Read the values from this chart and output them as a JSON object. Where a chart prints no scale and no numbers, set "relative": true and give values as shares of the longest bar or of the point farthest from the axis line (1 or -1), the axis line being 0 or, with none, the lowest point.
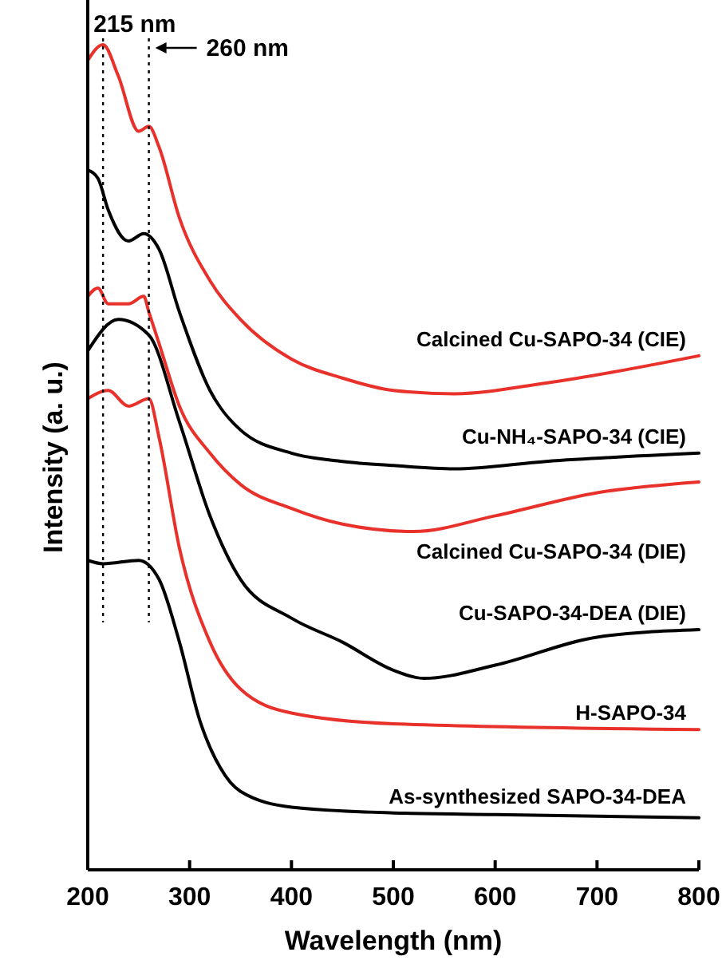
{
  "chart_data": {
    "type": "line",
    "relative": true,
    "xlabel": "Wavelength (nm)",
    "ylabel": "Intensity (a. u.)",
    "xlim": [
      200,
      800
    ],
    "xticks": [
      200,
      300,
      400,
      500,
      600,
      700,
      800
    ],
    "grid": false,
    "marker": "none",
    "line_style": "solid",
    "series": [
      {
        "name": "As-synthesized SAPO-34-DEA",
        "color": "#000000",
        "x": [
          200,
          215,
          250,
          270,
          290,
          310,
          330,
          350,
          400,
          500,
          600,
          800
        ],
        "values": [
          0.375,
          0.371,
          0.375,
          0.352,
          0.276,
          0.181,
          0.124,
          0.095,
          0.076,
          0.069,
          0.067,
          0.063
        ]
      },
      {
        "name": "H-SAPO-34",
        "color": "#e8312a",
        "x": [
          200,
          220,
          240,
          260,
          270,
          290,
          320,
          350,
          400,
          500,
          800
        ],
        "values": [
          0.571,
          0.581,
          0.562,
          0.571,
          0.524,
          0.39,
          0.276,
          0.219,
          0.19,
          0.177,
          0.17
        ]
      },
      {
        "name": "Cu-SAPO-34-DEA (DIE)",
        "color": "#000000",
        "x": [
          200,
          230,
          260,
          290,
          320,
          350,
          400,
          450,
          500,
          530,
          600,
          700,
          800
        ],
        "values": [
          0.629,
          0.667,
          0.648,
          0.543,
          0.429,
          0.352,
          0.305,
          0.276,
          0.242,
          0.232,
          0.248,
          0.282,
          0.291
        ]
      },
      {
        "name": "Calcined Cu-SAPO-34 (DIE)",
        "color": "#e8312a",
        "x": [
          200,
          210,
          220,
          240,
          255,
          260,
          270,
          290,
          320,
          350,
          400,
          450,
          520,
          600,
          700,
          800
        ],
        "values": [
          0.695,
          0.705,
          0.686,
          0.686,
          0.695,
          0.676,
          0.638,
          0.562,
          0.505,
          0.467,
          0.438,
          0.419,
          0.41,
          0.429,
          0.457,
          0.47
        ]
      },
      {
        "name": "Cu-NH₄-SAPO-34 (CIE)",
        "color": "#000000",
        "x": [
          200,
          210,
          220,
          240,
          255,
          270,
          290,
          320,
          350,
          400,
          450,
          500,
          560,
          650,
          800
        ],
        "values": [
          0.848,
          0.838,
          0.8,
          0.762,
          0.771,
          0.752,
          0.676,
          0.581,
          0.533,
          0.505,
          0.495,
          0.49,
          0.486,
          0.495,
          0.505
        ]
      },
      {
        "name": "Calcined Cu-SAPO-34 (CIE)",
        "color": "#e8312a",
        "x": [
          200,
          215,
          230,
          250,
          260,
          270,
          290,
          320,
          350,
          400,
          450,
          500,
          560,
          650,
          800
        ],
        "values": [
          0.981,
          1.0,
          0.962,
          0.895,
          0.901,
          0.876,
          0.79,
          0.714,
          0.667,
          0.619,
          0.596,
          0.581,
          0.577,
          0.59,
          0.623
        ]
      }
    ],
    "ref_lines": [
      {
        "axis": "x",
        "value": 215,
        "label": "215 nm",
        "line_style": "dotted",
        "color": "#000000"
      },
      {
        "axis": "x",
        "value": 260,
        "label": "260 nm",
        "line_style": "dotted",
        "color": "#000000"
      }
    ]
  }
}
